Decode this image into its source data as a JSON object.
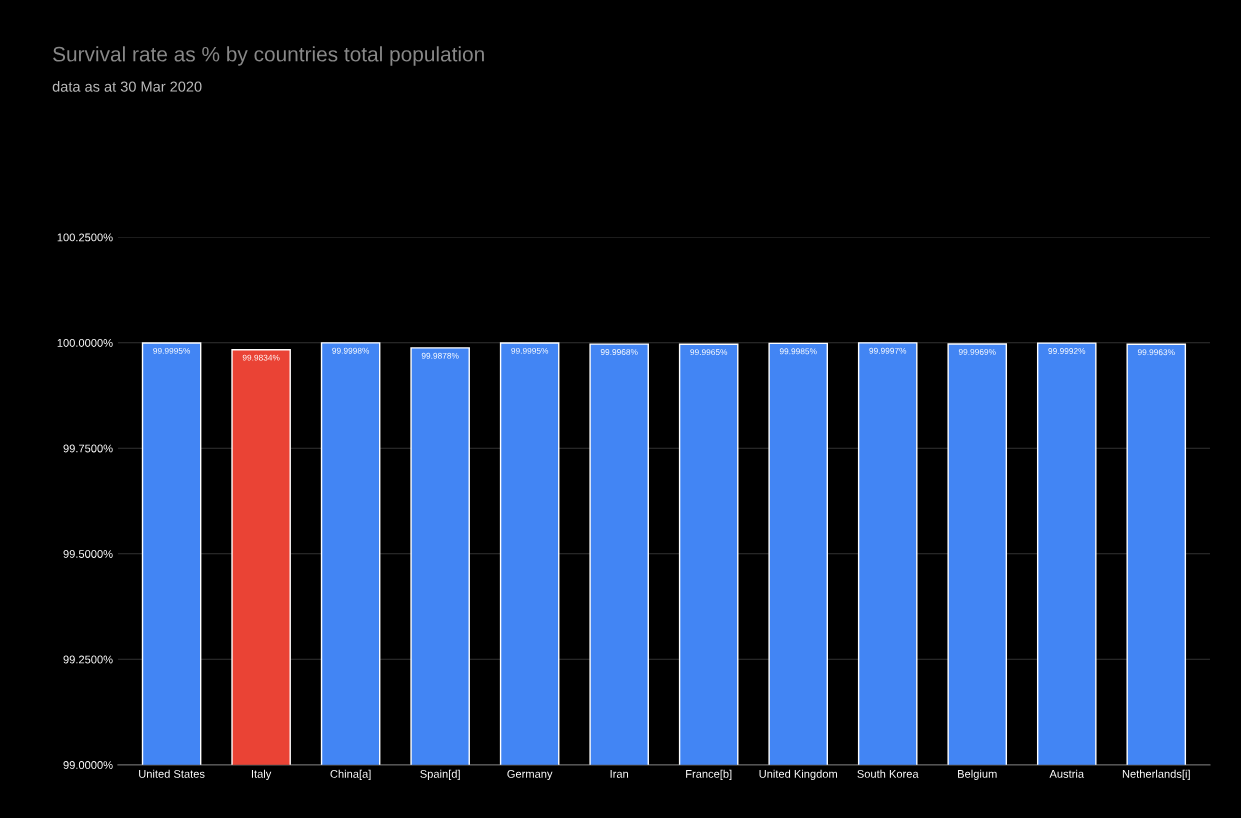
{
  "chart_data": {
    "type": "bar",
    "title": "Survival rate as % by countries total population",
    "subtitle": "data as at 30 Mar 2020",
    "categories": [
      "United States",
      "Italy",
      "China[a]",
      "Spain[d]",
      "Germany",
      "Iran",
      "France[b]",
      "United Kingdom",
      "South Korea",
      "Belgium",
      "Austria",
      "Netherlands[i]"
    ],
    "values": [
      99.9995,
      99.9834,
      99.9998,
      99.9878,
      99.9995,
      99.9968,
      99.9965,
      99.9985,
      99.9997,
      99.9969,
      99.9992,
      99.9963
    ],
    "value_labels": [
      "99.9995%",
      "99.9834%",
      "99.9998%",
      "99.9878%",
      "99.9995%",
      "99.9968%",
      "99.9965%",
      "99.9985%",
      "99.9997%",
      "99.9969%",
      "99.9992%",
      "99.9963%"
    ],
    "colors": [
      "#4285f4",
      "#ea4335",
      "#4285f4",
      "#4285f4",
      "#4285f4",
      "#4285f4",
      "#4285f4",
      "#4285f4",
      "#4285f4",
      "#4285f4",
      "#4285f4",
      "#4285f4"
    ],
    "ylim": [
      99,
      100.25
    ],
    "yticks": [
      {
        "value": 99,
        "label": "99.0000%"
      },
      {
        "value": 99.25,
        "label": "99.2500%"
      },
      {
        "value": 99.5,
        "label": "99.5000%"
      },
      {
        "value": 99.75,
        "label": "99.7500%"
      },
      {
        "value": 100,
        "label": "100.0000%"
      },
      {
        "value": 100.25,
        "label": "100.2500%"
      }
    ],
    "grid": "y",
    "legend": false
  }
}
